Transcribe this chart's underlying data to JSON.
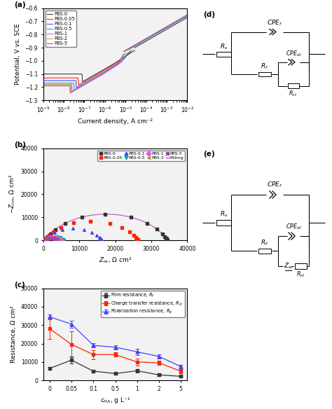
{
  "panel_a": {
    "xlabel": "Current density, A cm⁻²",
    "ylabel": "Potential, V vs. SCE",
    "ylim": [
      -1.3,
      -0.6
    ],
    "series": [
      {
        "label": "PBS-0",
        "color": "#333333",
        "corr_pot": -1.025,
        "corr_curr_log": -5.6,
        "E_flat": -1.02,
        "beta_a": 0.1,
        "beta_c": 0.09,
        "i_pass_log": -4.85,
        "E_trans": -0.9
      },
      {
        "label": "PBS-0.05",
        "color": "#ff2200",
        "corr_pot": -1.05,
        "corr_curr_log": -5.8,
        "E_flat": -1.05,
        "beta_a": 0.1,
        "beta_c": 0.09,
        "i_pass_log": -5.0,
        "E_trans": -0.9
      },
      {
        "label": "PBS-0.1",
        "color": "#4444ff",
        "corr_pot": -1.07,
        "corr_curr_log": -5.9,
        "E_flat": -1.07,
        "beta_a": 0.1,
        "beta_c": 0.09,
        "i_pass_log": -5.1,
        "E_trans": -0.91
      },
      {
        "label": "PBS-0.5",
        "color": "#00aaaa",
        "corr_pot": -1.09,
        "corr_curr_log": -6.0,
        "E_flat": -1.09,
        "beta_a": 0.1,
        "beta_c": 0.09,
        "i_pass_log": -5.2,
        "E_trans": -0.92
      },
      {
        "label": "PBS-1",
        "color": "#ff44ff",
        "corr_pot": -1.1,
        "corr_curr_log": -6.1,
        "E_flat": -1.1,
        "beta_a": 0.1,
        "beta_c": 0.09,
        "i_pass_log": -5.3,
        "E_trans": -0.92
      },
      {
        "label": "PBS-2",
        "color": "#aaaa44",
        "corr_pot": -1.1,
        "corr_curr_log": -6.15,
        "E_flat": -1.1,
        "beta_a": 0.1,
        "beta_c": 0.09,
        "i_pass_log": -5.35,
        "E_trans": -0.93
      },
      {
        "label": "PBS-5",
        "color": "#aa44aa",
        "corr_pot": -1.11,
        "corr_curr_log": -6.2,
        "E_flat": -1.11,
        "beta_a": 0.1,
        "beta_c": 0.09,
        "i_pass_log": -5.4,
        "E_trans": -0.93
      }
    ]
  },
  "panel_b": {
    "xlabel": "$Z_{re}$, Ω cm²",
    "ylabel": "$-Z_{im}$, Ω cm²",
    "xlim": [
      0,
      40000
    ],
    "ylim": [
      0,
      40000
    ],
    "yticks": [
      0,
      10000,
      20000,
      30000,
      40000
    ],
    "xticks": [
      0,
      10000,
      20000,
      30000,
      40000
    ],
    "series": [
      {
        "label": "PBS-0",
        "color": "#333333",
        "marker": "s",
        "R1": 500,
        "R2": 34000,
        "alpha": 0.75
      },
      {
        "label": "PBS-0.05",
        "color": "#ff2200",
        "marker": "s",
        "R1": 400,
        "R2": 26000,
        "alpha": 0.73
      },
      {
        "label": "PBS-0.1",
        "color": "#4444ff",
        "marker": "^",
        "R1": 350,
        "R2": 16000,
        "alpha": 0.72
      },
      {
        "label": "PBS-0.5",
        "color": "#00aaaa",
        "marker": "v",
        "R1": 300,
        "R2": 5500,
        "alpha": 0.7
      },
      {
        "label": "PBS-1",
        "color": "#ff44ff",
        "marker": "D",
        "R1": 280,
        "R2": 4800,
        "alpha": 0.69
      },
      {
        "label": "PBS-2",
        "color": "#aaaa44",
        "marker": "<",
        "R1": 260,
        "R2": 4200,
        "alpha": 0.68
      },
      {
        "label": "PBS-5",
        "color": "#aa44aa",
        "marker": "s",
        "R1": 240,
        "R2": 3800,
        "alpha": 0.67
      }
    ]
  },
  "panel_c": {
    "xlabel": "$c_{\\mathrm{HA}}$, g L⁻¹",
    "ylabel": "Resistance, Ω cm²",
    "xlabels": [
      "0",
      "0.05",
      "0.1",
      "0.5",
      "1",
      "2",
      "5"
    ],
    "ylim": [
      0,
      50000
    ],
    "yticks": [
      0,
      10000,
      20000,
      30000,
      40000,
      50000
    ],
    "series": [
      {
        "label": "Film resistance, $R_f$",
        "color": "#333333",
        "marker": "s",
        "values": [
          6500,
          11000,
          5000,
          3700,
          5200,
          3000,
          2200
        ],
        "errors": [
          600,
          1800,
          900,
          600,
          900,
          600,
          400
        ]
      },
      {
        "label": "Charge transfer resistance, $R_{ct}$",
        "color": "#ff2200",
        "marker": "s",
        "values": [
          28000,
          19500,
          14000,
          14000,
          10000,
          9500,
          5000
        ],
        "errors": [
          5500,
          7000,
          2500,
          1200,
          1800,
          1000,
          1200
        ]
      },
      {
        "label": "Polarization resistance, $R_p$",
        "color": "#4444ff",
        "marker": "^",
        "values": [
          34500,
          30500,
          19000,
          18000,
          15500,
          13000,
          7500
        ],
        "errors": [
          1200,
          1800,
          1200,
          1200,
          1800,
          1200,
          900
        ]
      }
    ]
  }
}
